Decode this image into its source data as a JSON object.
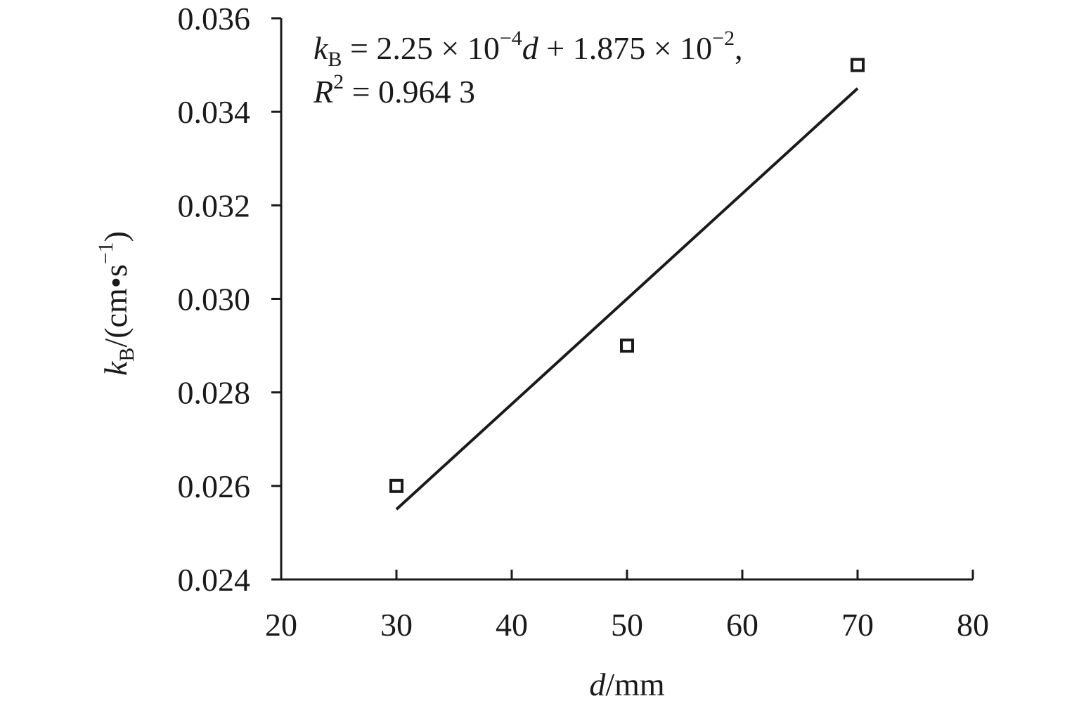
{
  "chart_data": {
    "type": "scatter",
    "x": [
      30,
      50,
      70
    ],
    "y": [
      0.026,
      0.029,
      0.035
    ],
    "xlim": [
      20,
      80
    ],
    "ylim": [
      0.024,
      0.036
    ],
    "x_ticks": [
      20,
      30,
      40,
      50,
      60,
      70,
      80
    ],
    "y_ticks": [
      0.024,
      0.026,
      0.028,
      0.03,
      0.032,
      0.034,
      0.036
    ],
    "x_tick_labels": [
      "20",
      "30",
      "40",
      "50",
      "60",
      "70",
      "80"
    ],
    "y_tick_labels": [
      "0.024",
      "0.026",
      "0.028",
      "0.030",
      "0.032",
      "0.034",
      "0.036"
    ],
    "xlabel": {
      "var": "d",
      "unit": "/mm"
    },
    "ylabel": {
      "var": "k",
      "sub": "B",
      "unit_open": "/(cm•s",
      "unit_sup": "−1",
      "unit_close": ")"
    },
    "fit": {
      "slope": 0.000225,
      "intercept": 0.01875,
      "x_range": [
        30,
        70
      ],
      "equation": {
        "lhs_var": "k",
        "lhs_sub": "B",
        "eq_sign": " = ",
        "coef1": "2.25 × 10",
        "exp1": "−4",
        "var": "d",
        "plus": " + ",
        "coef2": "1.875 × 10",
        "exp2": "−2",
        "trail": ","
      },
      "r2": {
        "var": "R",
        "sup": "2",
        "value": " = 0.964 3"
      }
    },
    "marker": "open-square",
    "grid": false,
    "legend": "none",
    "colors": {
      "ink": "#1a1a1a"
    }
  }
}
